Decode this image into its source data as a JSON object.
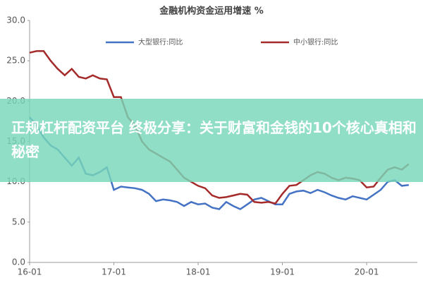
{
  "chart_data": {
    "type": "line",
    "title": "金融机构资金运用增速 %",
    "categories": [
      "16-01",
      null,
      null,
      null,
      null,
      null,
      null,
      null,
      null,
      null,
      null,
      null,
      "17-01",
      null,
      null,
      null,
      null,
      null,
      null,
      null,
      null,
      null,
      null,
      null,
      "18-01",
      null,
      null,
      null,
      null,
      null,
      null,
      null,
      null,
      null,
      null,
      null,
      "19-01",
      null,
      null,
      null,
      null,
      null,
      null,
      null,
      null,
      null,
      null,
      null,
      "20-01",
      null,
      null,
      null,
      null,
      null,
      null
    ],
    "series": [
      {
        "name": "大型银行:同比",
        "color": "#4472c4",
        "values": [
          18.0,
          17.0,
          15.5,
          14.5,
          14.0,
          13.0,
          12.0,
          13.0,
          11.0,
          10.8,
          11.2,
          11.8,
          9.0,
          9.4,
          9.3,
          9.2,
          9.0,
          8.5,
          7.6,
          7.8,
          7.7,
          7.5,
          7.0,
          7.5,
          7.2,
          7.3,
          6.8,
          6.6,
          7.5,
          7.0,
          6.6,
          7.2,
          7.8,
          8.0,
          7.6,
          7.2,
          7.2,
          8.5,
          8.8,
          8.9,
          8.6,
          9.0,
          8.7,
          8.3,
          8.0,
          7.8,
          8.2,
          8.0,
          7.8,
          8.4,
          9.0,
          10.0,
          10.2,
          9.5,
          9.6
        ]
      },
      {
        "name": "中小银行:同比",
        "color": "#a52a2a",
        "values": [
          26.0,
          26.2,
          26.2,
          25.0,
          24.0,
          23.2,
          24.0,
          23.0,
          22.8,
          23.2,
          22.8,
          22.7,
          20.5,
          20.5,
          18.0,
          17.0,
          15.0,
          14.0,
          13.5,
          13.0,
          12.5,
          11.5,
          10.5,
          10.0,
          9.5,
          9.2,
          8.3,
          8.0,
          8.1,
          8.3,
          8.5,
          8.4,
          7.5,
          7.4,
          7.5,
          7.3,
          8.5,
          9.5,
          9.6,
          10.2,
          10.8,
          11.2,
          11.0,
          10.5,
          10.2,
          10.5,
          10.4,
          10.2,
          9.3,
          9.4,
          10.5,
          11.5,
          11.8,
          11.5,
          12.2
        ]
      }
    ],
    "ylim": [
      0,
      30
    ],
    "yticks": [
      {
        "value": 0,
        "label": "0.0"
      },
      {
        "value": 5,
        "label": "5.0"
      },
      {
        "value": 10,
        "label": "10.0"
      },
      {
        "value": 15,
        "label": "15.0"
      },
      {
        "value": 20,
        "label": "20.0"
      },
      {
        "value": 25,
        "label": "25.0"
      },
      {
        "value": 30,
        "label": "30.0"
      }
    ],
    "grid": false
  },
  "overlay": {
    "text": "正规杠杆配资平台 终极分享：关于财富和金钱的10个核心真相和秘密"
  }
}
